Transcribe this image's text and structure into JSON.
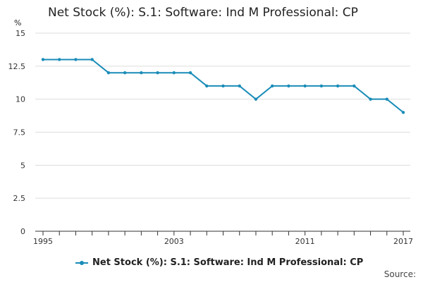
{
  "title": "Net Stock (%): S.1: Software: Ind M Professional: CP",
  "y_unit": "%",
  "source_label": "Source:",
  "chart_data": {
    "type": "line",
    "title": "Net Stock (%): S.1: Software: Ind M Professional: CP",
    "xlabel": "",
    "ylabel": "%",
    "x": [
      1995,
      1996,
      1997,
      1998,
      1999,
      2000,
      2001,
      2002,
      2003,
      2004,
      2005,
      2006,
      2007,
      2008,
      2009,
      2010,
      2011,
      2012,
      2013,
      2014,
      2015,
      2016,
      2017
    ],
    "series": [
      {
        "name": "Net Stock (%): S.1: Software: Ind M Professional: CP",
        "values": [
          13,
          13,
          13,
          13,
          12,
          12,
          12,
          12,
          12,
          12,
          11,
          11,
          11,
          10,
          11,
          11,
          11,
          11,
          11,
          11,
          10,
          10,
          9
        ]
      }
    ],
    "ylim": [
      0,
      15
    ],
    "xlim": [
      1995,
      2017
    ],
    "y_ticks": [
      "0",
      "2.5",
      "5",
      "7.5",
      "10",
      "12.5",
      "15"
    ],
    "x_tick_labels": [
      "1995",
      "2003",
      "2011",
      "2017"
    ],
    "grid": "horizontal",
    "legend_position": "bottom",
    "colors": {
      "series": "#1a8cb8",
      "grid": "#dddddd",
      "axis": "#333333"
    }
  }
}
